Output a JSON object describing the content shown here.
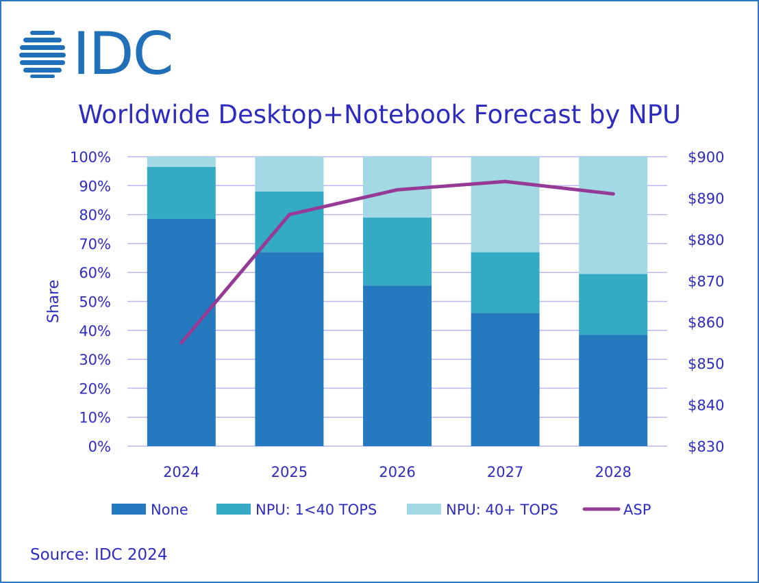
{
  "brand": {
    "logo_text": "IDC",
    "logo_icon": "idc-globe-icon"
  },
  "chart_data": {
    "type": "bar",
    "stacked": true,
    "title": "Worldwide Desktop+Notebook Forecast by NPU",
    "xlabel": "",
    "ylabel": "Share",
    "ylim": [
      0,
      100
    ],
    "y_ticks": [
      "0%",
      "10%",
      "20%",
      "30%",
      "40%",
      "50%",
      "60%",
      "70%",
      "80%",
      "90%",
      "100%"
    ],
    "y2_lim": [
      830,
      900
    ],
    "y2_ticks": [
      "$830",
      "$840",
      "$850",
      "$860",
      "$870",
      "$880",
      "$890",
      "$900"
    ],
    "categories": [
      "2024",
      "2025",
      "2026",
      "2027",
      "2028"
    ],
    "series": [
      {
        "name": "None",
        "kind": "bar",
        "color": "#2579bf",
        "values": [
          78.5,
          67,
          55.5,
          46,
          38.5
        ]
      },
      {
        "name": "NPU: 1<40 TOPS",
        "kind": "bar",
        "color": "#34aac4",
        "values": [
          18,
          21,
          23.5,
          21,
          21
        ]
      },
      {
        "name": "NPU: 40+ TOPS",
        "kind": "bar",
        "color": "#a2d9e4",
        "values": [
          3.5,
          12,
          21,
          33,
          40.5
        ]
      },
      {
        "name": "ASP",
        "kind": "line",
        "axis": "right",
        "color": "#953b96",
        "values": [
          855,
          886,
          892,
          894,
          891
        ]
      }
    ],
    "legend_position": "bottom",
    "grid": true
  },
  "source": "Source: IDC 2024"
}
